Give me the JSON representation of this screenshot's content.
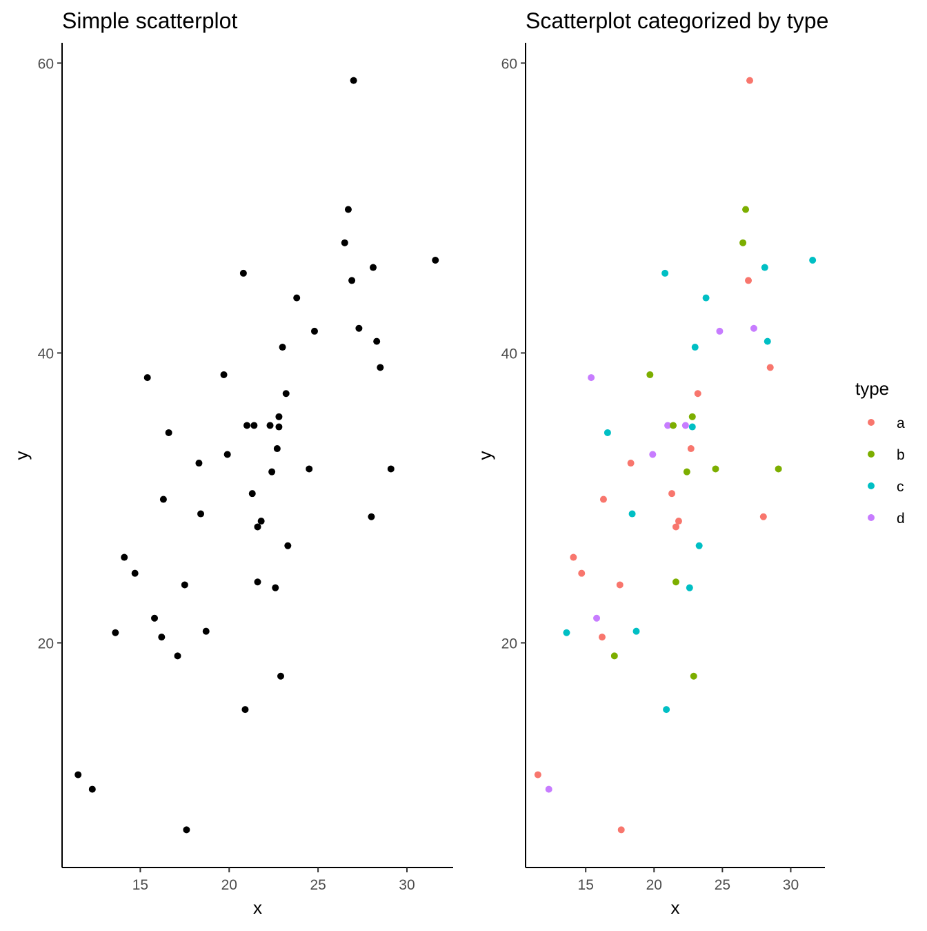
{
  "chart_data": [
    {
      "type": "scatter",
      "title": "Simple scatterplot",
      "xlabel": "x",
      "ylabel": "y",
      "xlim": [
        10.6,
        32.6
      ],
      "ylim": [
        4.5,
        61.4
      ],
      "xticks": [
        15,
        20,
        25,
        30
      ],
      "yticks": [
        20,
        40,
        60
      ],
      "grid": false,
      "point_color": "#000000"
    },
    {
      "type": "scatter",
      "title": "Scatterplot categorized by type",
      "xlabel": "x",
      "ylabel": "y",
      "xlim": [
        10.6,
        32.5
      ],
      "ylim": [
        4.5,
        61.4
      ],
      "xticks": [
        15,
        20,
        25,
        30
      ],
      "yticks": [
        20,
        40,
        60
      ],
      "grid": false,
      "legend": {
        "title": "type",
        "placement": "right",
        "entries": [
          {
            "label": "a",
            "color": "#F8766D"
          },
          {
            "label": "b",
            "color": "#7CAE00"
          },
          {
            "label": "c",
            "color": "#00BFC4"
          },
          {
            "label": "d",
            "color": "#C77CFF"
          }
        ]
      }
    }
  ],
  "points": [
    {
      "x": 27.0,
      "y": 58.8,
      "type": "a"
    },
    {
      "x": 26.7,
      "y": 49.9,
      "type": "b"
    },
    {
      "x": 26.5,
      "y": 47.6,
      "type": "b"
    },
    {
      "x": 31.6,
      "y": 46.4,
      "type": "c"
    },
    {
      "x": 28.1,
      "y": 45.9,
      "type": "c"
    },
    {
      "x": 20.8,
      "y": 45.5,
      "type": "c"
    },
    {
      "x": 26.9,
      "y": 45.0,
      "type": "a"
    },
    {
      "x": 23.8,
      "y": 43.8,
      "type": "c"
    },
    {
      "x": 27.3,
      "y": 41.7,
      "type": "d"
    },
    {
      "x": 24.8,
      "y": 41.5,
      "type": "d"
    },
    {
      "x": 28.3,
      "y": 40.8,
      "type": "c"
    },
    {
      "x": 23.0,
      "y": 40.4,
      "type": "c"
    },
    {
      "x": 28.5,
      "y": 39.0,
      "type": "a"
    },
    {
      "x": 15.4,
      "y": 38.3,
      "type": "d"
    },
    {
      "x": 19.7,
      "y": 38.5,
      "type": "b"
    },
    {
      "x": 23.2,
      "y": 37.2,
      "type": "a"
    },
    {
      "x": 22.8,
      "y": 35.6,
      "type": "b"
    },
    {
      "x": 21.0,
      "y": 35.0,
      "type": "d"
    },
    {
      "x": 21.4,
      "y": 35.0,
      "type": "b"
    },
    {
      "x": 22.3,
      "y": 35.0,
      "type": "d"
    },
    {
      "x": 22.8,
      "y": 34.9,
      "type": "c"
    },
    {
      "x": 16.6,
      "y": 34.5,
      "type": "c"
    },
    {
      "x": 22.7,
      "y": 33.4,
      "type": "a"
    },
    {
      "x": 19.9,
      "y": 33.0,
      "type": "d"
    },
    {
      "x": 18.3,
      "y": 32.4,
      "type": "a"
    },
    {
      "x": 24.5,
      "y": 32.0,
      "type": "b"
    },
    {
      "x": 29.1,
      "y": 32.0,
      "type": "b"
    },
    {
      "x": 22.4,
      "y": 31.8,
      "type": "b"
    },
    {
      "x": 21.3,
      "y": 30.3,
      "type": "a"
    },
    {
      "x": 16.3,
      "y": 29.9,
      "type": "a"
    },
    {
      "x": 18.4,
      "y": 28.9,
      "type": "c"
    },
    {
      "x": 28.0,
      "y": 28.7,
      "type": "a"
    },
    {
      "x": 21.8,
      "y": 28.4,
      "type": "a"
    },
    {
      "x": 21.6,
      "y": 28.0,
      "type": "a"
    },
    {
      "x": 23.3,
      "y": 26.7,
      "type": "c"
    },
    {
      "x": 14.1,
      "y": 25.9,
      "type": "a"
    },
    {
      "x": 14.7,
      "y": 24.8,
      "type": "a"
    },
    {
      "x": 21.6,
      "y": 24.2,
      "type": "b"
    },
    {
      "x": 17.5,
      "y": 24.0,
      "type": "a"
    },
    {
      "x": 22.6,
      "y": 23.8,
      "type": "c"
    },
    {
      "x": 15.8,
      "y": 21.7,
      "type": "d"
    },
    {
      "x": 18.7,
      "y": 20.8,
      "type": "c"
    },
    {
      "x": 13.6,
      "y": 20.7,
      "type": "c"
    },
    {
      "x": 16.2,
      "y": 20.4,
      "type": "a"
    },
    {
      "x": 17.1,
      "y": 19.1,
      "type": "b"
    },
    {
      "x": 22.9,
      "y": 17.7,
      "type": "b"
    },
    {
      "x": 20.9,
      "y": 15.4,
      "type": "c"
    },
    {
      "x": 11.5,
      "y": 10.9,
      "type": "a"
    },
    {
      "x": 12.3,
      "y": 9.9,
      "type": "d"
    },
    {
      "x": 17.6,
      "y": 7.1,
      "type": "a"
    }
  ]
}
